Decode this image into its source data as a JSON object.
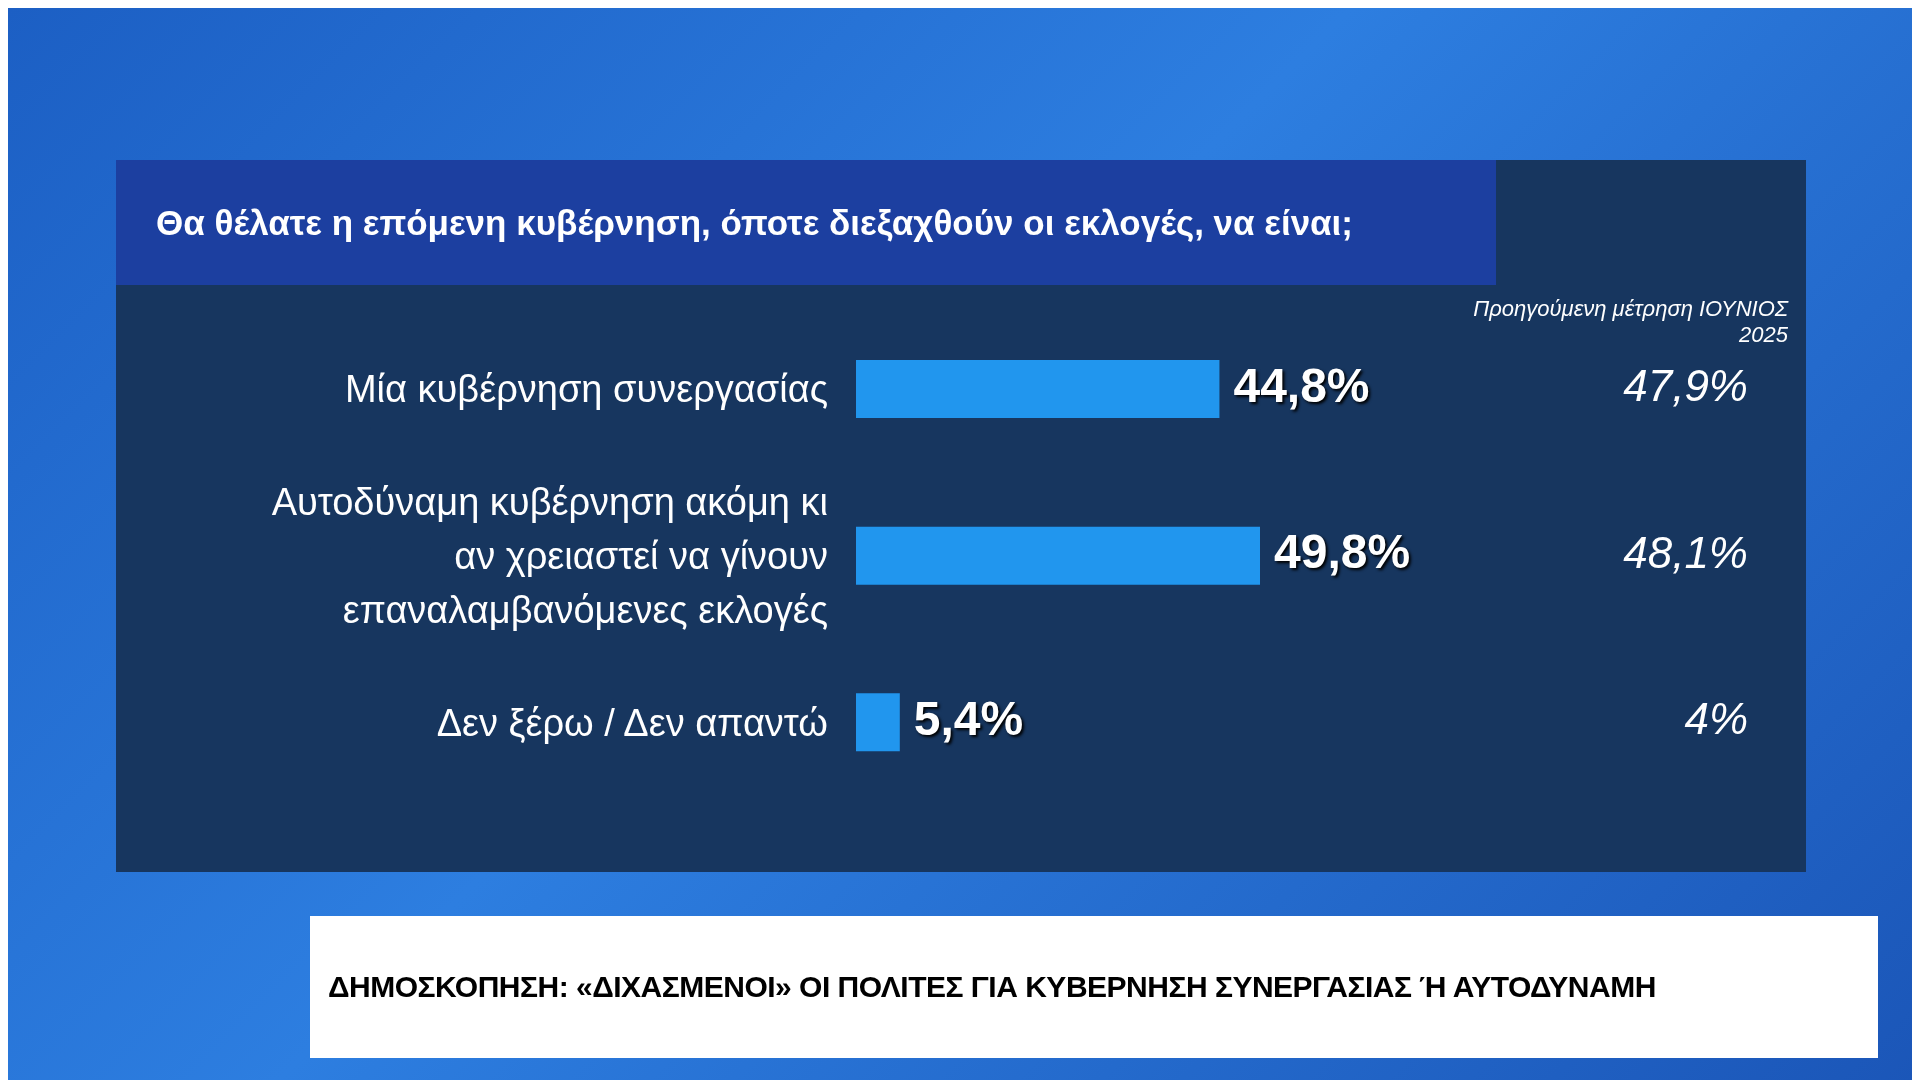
{
  "chart_data": {
    "type": "bar",
    "orientation": "horizontal",
    "title": "Θα θέλατε η επόμενη κυβέρνηση, όποτε διεξαχθούν οι εκλογές, να είναι;",
    "subtitle": "ΔΗΜΟΣΚΟΠΗΣΗ: «ΔΙΧΑΣΜΕΝΟΙ» ΟΙ ΠΟΛΙΤΕΣ ΓΙΑ ΚΥΒΕΡΝΗΣΗ ΣΥΝΕΡΓΑΣΙΑΣ Ή ΑΥΤΟΔΥΝΑΜΗ",
    "categories": [
      "Μία κυβέρνηση συνεργασίας",
      "Αυτοδύναμη κυβέρνηση ακόμη κι αν χρειαστεί να γίνουν επαναλαμβανόμενες εκλογές",
      "Δεν ξέρω / Δεν απαντώ"
    ],
    "values": [
      44.8,
      49.8,
      5.4
    ],
    "value_labels": [
      "44,8%",
      "49,8%",
      "5,4%"
    ],
    "color": "#2196ee",
    "annotations": [
      "Προηγούμενη μέτρηση ΙΟΥΝΙΟΣ 2025",
      "47,9%",
      "48,1%",
      "4%"
    ]
  }
}
